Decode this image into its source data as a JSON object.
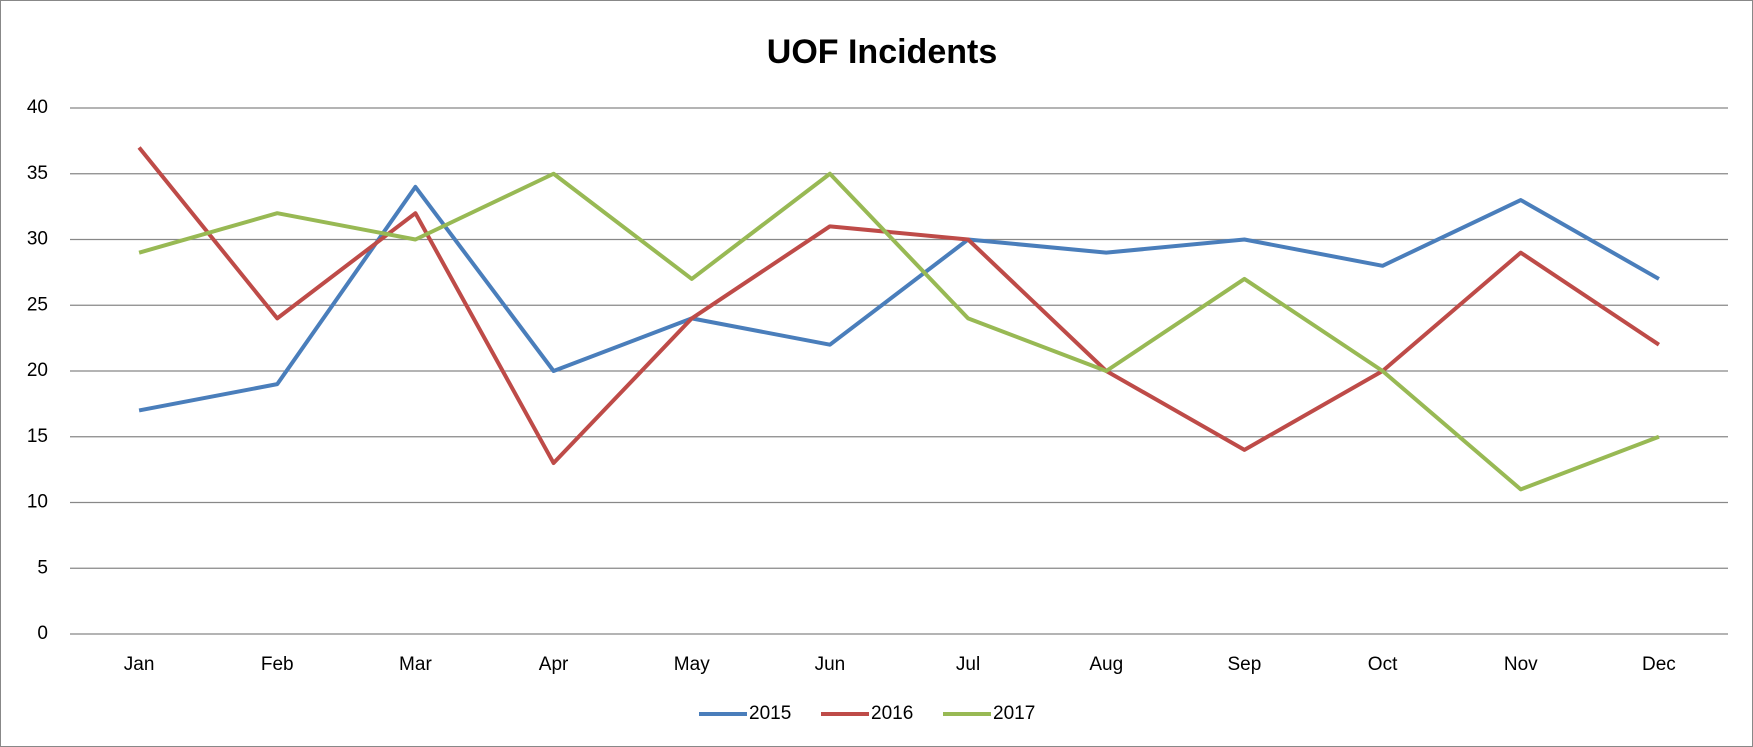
{
  "chart_data": {
    "type": "line",
    "title": "UOF Incidents",
    "categories": [
      "Jan",
      "Feb",
      "Mar",
      "Apr",
      "May",
      "Jun",
      "Jul",
      "Aug",
      "Sep",
      "Oct",
      "Nov",
      "Dec"
    ],
    "series": [
      {
        "name": "2015",
        "color": "#4a7ebb",
        "values": [
          17,
          19,
          34,
          20,
          24,
          22,
          30,
          29,
          30,
          28,
          33,
          27
        ]
      },
      {
        "name": "2016",
        "color": "#be4b48",
        "values": [
          37,
          24,
          32,
          13,
          24,
          31,
          30,
          20,
          14,
          20,
          29,
          22
        ]
      },
      {
        "name": "2017",
        "color": "#98b954",
        "values": [
          29,
          32,
          30,
          35,
          27,
          35,
          24,
          20,
          27,
          20,
          11,
          15
        ]
      }
    ],
    "ylim": [
      0,
      40
    ],
    "yticks": [
      0,
      5,
      10,
      15,
      20,
      25,
      30,
      35,
      40
    ],
    "grid": true,
    "legend": "bottom"
  }
}
